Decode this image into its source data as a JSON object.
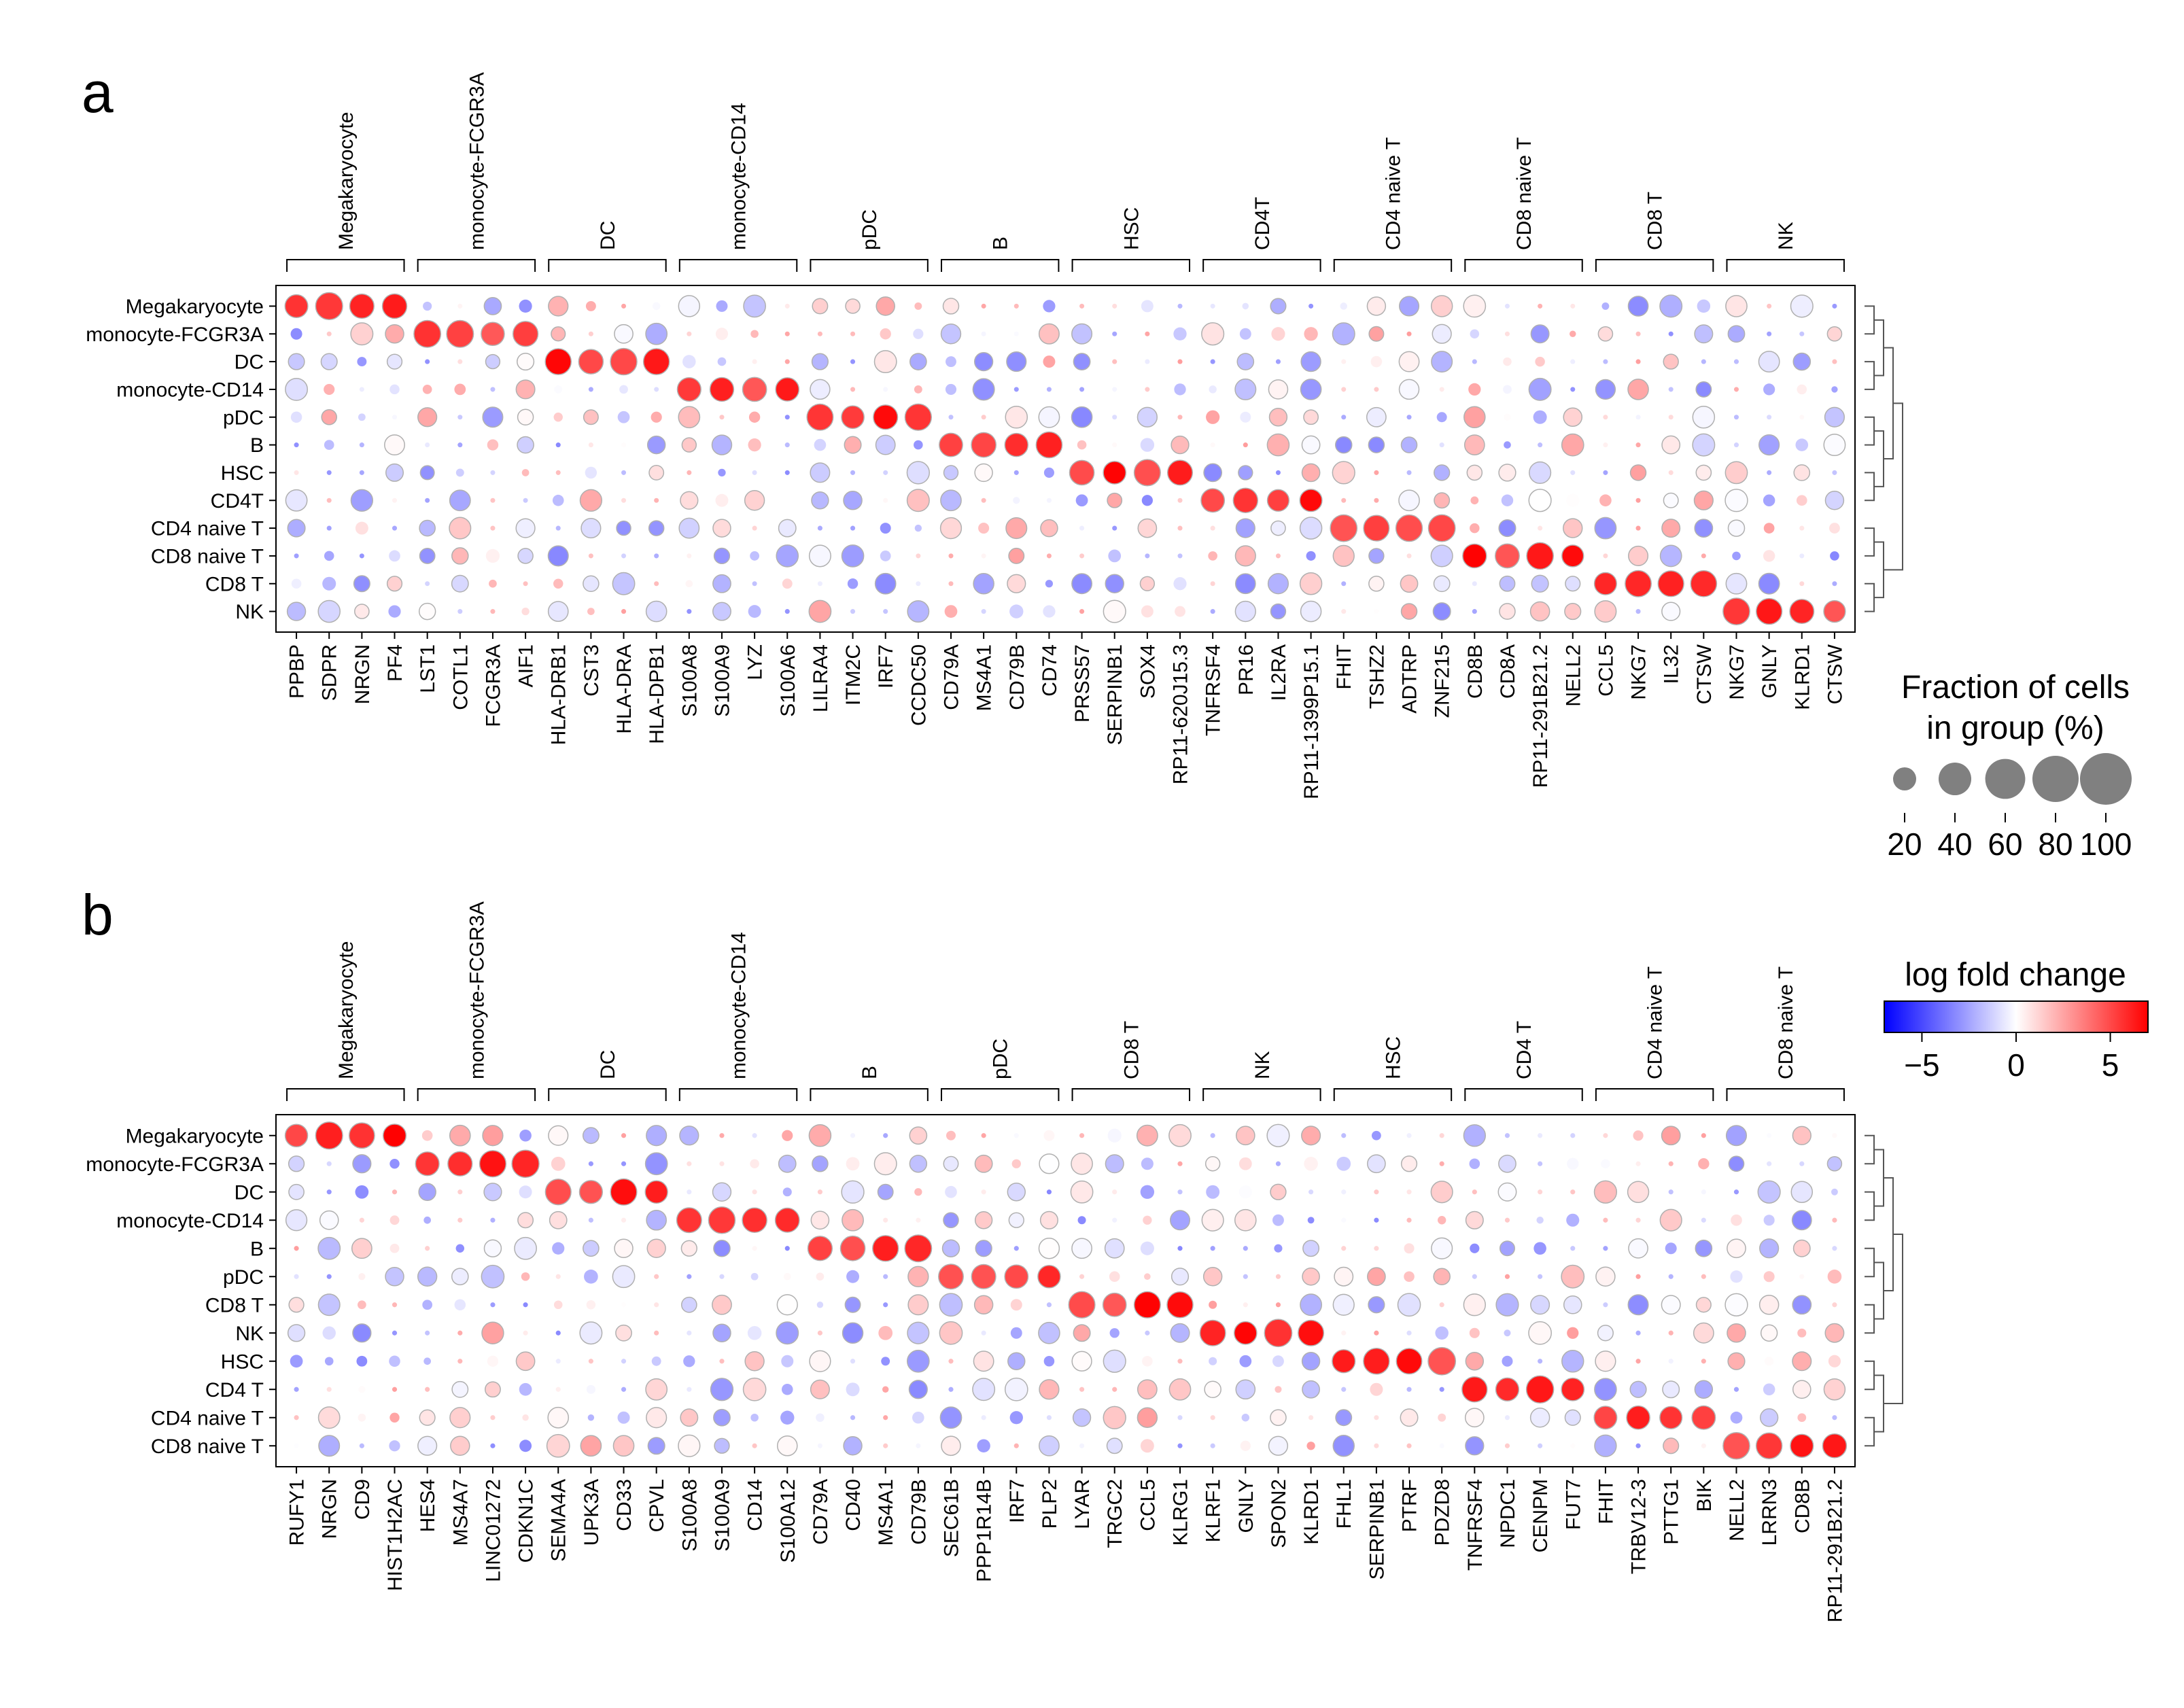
{
  "colormap": {
    "neg": "#0000ff",
    "mid": "#ffffff",
    "pos": "#ff0000",
    "dot_outline": "#aaaaaa"
  },
  "chart_data": [
    {
      "type": "dotplot",
      "panel_label": "a",
      "rows": [
        "Megakaryocyte",
        "monocyte-FCGR3A",
        "DC",
        "monocyte-CD14",
        "pDC",
        "B",
        "HSC",
        "CD4T",
        "CD4 naive T",
        "CD8 naive T",
        "CD8 T",
        "NK"
      ],
      "groups": [
        {
          "name": "Megakaryocyte",
          "genes": [
            "PPBP",
            "SDPR",
            "NRGN",
            "PF4"
          ]
        },
        {
          "name": "monocyte-FCGR3A",
          "genes": [
            "LST1",
            "COTL1",
            "FCGR3A",
            "AIF1"
          ]
        },
        {
          "name": "DC",
          "genes": [
            "HLA-DRB1",
            "CST3",
            "HLA-DRA",
            "HLA-DPB1"
          ]
        },
        {
          "name": "monocyte-CD14",
          "genes": [
            "S100A8",
            "S100A9",
            "LYZ",
            "S100A6"
          ]
        },
        {
          "name": "pDC",
          "genes": [
            "LILRA4",
            "ITM2C",
            "IRF7",
            "CCDC50"
          ]
        },
        {
          "name": "B",
          "genes": [
            "CD79A",
            "MS4A1",
            "CD79B",
            "CD74"
          ]
        },
        {
          "name": "HSC",
          "genes": [
            "PRSS57",
            "SERPINB1",
            "SOX4",
            "RP11-620J15.3"
          ]
        },
        {
          "name": "CD4T",
          "genes": [
            "TNFRSF4",
            "PR16",
            "IL2RA",
            "RP11-1399P15.1"
          ]
        },
        {
          "name": "CD4 naive T",
          "genes": [
            "FHIT",
            "TSHZ2",
            "ADTRP",
            "ZNF215"
          ]
        },
        {
          "name": "CD8 naive T",
          "genes": [
            "CD8B",
            "CD8A",
            "RP11-291B21.2",
            "NELL2"
          ]
        },
        {
          "name": "CD8 T",
          "genes": [
            "CCL5",
            "NKG7",
            "IL32",
            "CTSW"
          ]
        },
        {
          "name": "NK",
          "genes": [
            "NKG7",
            "GNLY",
            "KLRD1",
            "CTSW"
          ]
        }
      ],
      "row_group_index": [
        0,
        1,
        2,
        3,
        4,
        5,
        6,
        7,
        8,
        9,
        10,
        11
      ],
      "dendrogram_order": [
        0,
        1,
        2,
        3,
        4,
        5,
        6,
        7,
        8,
        9,
        10,
        11
      ],
      "fraction_legend": {
        "title_line1": "Fraction of cells",
        "title_line2": "in group (%)",
        "sizes": [
          20,
          40,
          60,
          80,
          100
        ]
      }
    },
    {
      "type": "dotplot",
      "panel_label": "b",
      "rows": [
        "Megakaryocyte",
        "monocyte-FCGR3A",
        "DC",
        "monocyte-CD14",
        "B",
        "pDC",
        "CD8 T",
        "NK",
        "HSC",
        "CD4 T",
        "CD4 naive T",
        "CD8 naive T"
      ],
      "groups": [
        {
          "name": "Megakaryocyte",
          "genes": [
            "RUFY1",
            "NRGN",
            "CD9",
            "HIST1H2AC"
          ]
        },
        {
          "name": "monocyte-FCGR3A",
          "genes": [
            "HES4",
            "MS4A7",
            "LINC01272",
            "CDKN1C"
          ]
        },
        {
          "name": "DC",
          "genes": [
            "SEMA4A",
            "UPK3A",
            "CD33",
            "CPVL"
          ]
        },
        {
          "name": "monocyte-CD14",
          "genes": [
            "S100A8",
            "S100A9",
            "CD14",
            "S100A12"
          ]
        },
        {
          "name": "B",
          "genes": [
            "CD79A",
            "CD40",
            "MS4A1",
            "CD79B"
          ]
        },
        {
          "name": "pDC",
          "genes": [
            "SEC61B",
            "PPP1R14B",
            "IRF7",
            "PLP2"
          ]
        },
        {
          "name": "CD8 T",
          "genes": [
            "LYAR",
            "TRGC2",
            "CCL5",
            "KLRG1"
          ]
        },
        {
          "name": "NK",
          "genes": [
            "KLRF1",
            "GNLY",
            "SPON2",
            "KLRD1"
          ]
        },
        {
          "name": "HSC",
          "genes": [
            "FHL1",
            "SERPINB1",
            "PTRF",
            "PDZD8"
          ]
        },
        {
          "name": "CD4 T",
          "genes": [
            "TNFRSF4",
            "NPDC1",
            "CENPM",
            "FUT7"
          ]
        },
        {
          "name": "CD4 naive T",
          "genes": [
            "FHIT",
            "TRBV12-3",
            "PTTG1",
            "BIK"
          ]
        },
        {
          "name": "CD8 naive T",
          "genes": [
            "NELL2",
            "LRRN3",
            "CD8B",
            "RP11-291B21.2"
          ]
        }
      ],
      "row_group_index": [
        0,
        1,
        2,
        3,
        4,
        5,
        6,
        7,
        8,
        9,
        10,
        11
      ],
      "dendrogram_order": [
        0,
        1,
        2,
        3,
        4,
        5,
        6,
        7,
        8,
        9,
        10,
        11
      ],
      "colorbar": {
        "title": "log fold change",
        "ticks": [
          "−5",
          "0",
          "5"
        ],
        "range": [
          -7,
          7
        ]
      }
    }
  ]
}
